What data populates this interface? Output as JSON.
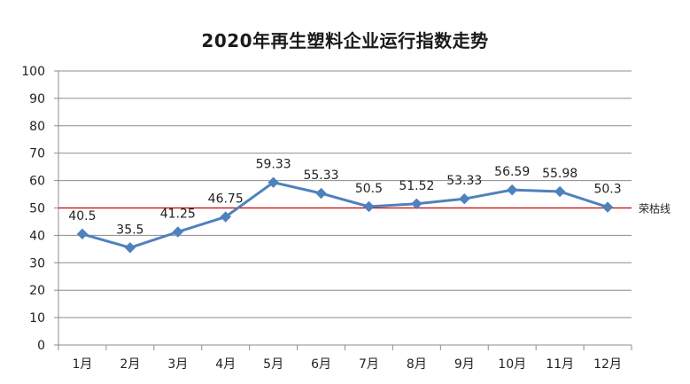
{
  "chart_data": {
    "type": "line",
    "title": "2020年再生塑料企业运行指数走势",
    "xlabel": "",
    "ylabel": "",
    "categories": [
      "1月",
      "2月",
      "3月",
      "4月",
      "5月",
      "6月",
      "7月",
      "8月",
      "9月",
      "10月",
      "11月",
      "12月"
    ],
    "series": [
      {
        "values": [
          40.5,
          35.5,
          41.25,
          46.75,
          59.33,
          55.33,
          50.5,
          51.52,
          53.33,
          56.59,
          55.98,
          50.3
        ]
      }
    ],
    "data_labels": [
      "40.5",
      "35.5",
      "41.25",
      "46.75",
      "59.33",
      "55.33",
      "50.5",
      "51.52",
      "53.33",
      "56.59",
      "55.98",
      "50.3"
    ],
    "ylim": [
      0,
      100
    ],
    "yticks": [
      0,
      10,
      20,
      30,
      40,
      50,
      60,
      70,
      80,
      90,
      100
    ],
    "grid": true,
    "reference_line": {
      "value": 50,
      "label": "荣枯线",
      "color": "#cc0000"
    },
    "colors": {
      "line": "#4f81bd",
      "grid": "#8c8c8c",
      "axis": "#8c8c8c"
    }
  }
}
